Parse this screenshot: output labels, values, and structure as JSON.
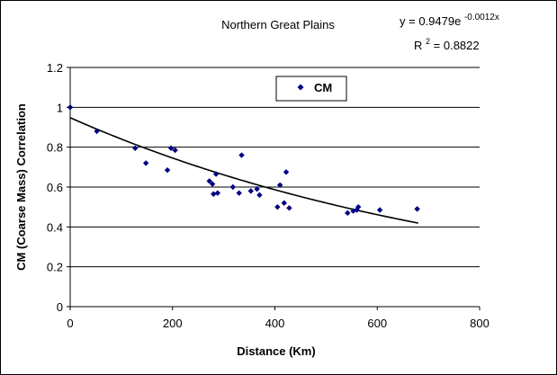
{
  "chart_data": {
    "type": "scatter",
    "title": "Northern Great Plains",
    "xlabel": "Distance (Km)",
    "ylabel": "CM (Coarse Mass) Correlation",
    "xlim": [
      0,
      800
    ],
    "ylim": [
      0,
      1.2
    ],
    "x_ticks": [
      "0",
      "200",
      "400",
      "600",
      "800"
    ],
    "y_ticks": [
      "0",
      "0.2",
      "0.4",
      "0.6",
      "0.8",
      "1",
      "1.2"
    ],
    "grid": "horizontal",
    "legend": {
      "placement": "top-center",
      "entries": [
        "CM"
      ]
    },
    "series": [
      {
        "name": "CM",
        "color": "#000080",
        "marker": "diamond",
        "points": [
          [
            0,
            1.0
          ],
          [
            52,
            0.88
          ],
          [
            127,
            0.795
          ],
          [
            148,
            0.72
          ],
          [
            190,
            0.685
          ],
          [
            197,
            0.795
          ],
          [
            205,
            0.785
          ],
          [
            272,
            0.63
          ],
          [
            278,
            0.615
          ],
          [
            280,
            0.565
          ],
          [
            285,
            0.665
          ],
          [
            288,
            0.57
          ],
          [
            318,
            0.6
          ],
          [
            330,
            0.57
          ],
          [
            335,
            0.76
          ],
          [
            353,
            0.58
          ],
          [
            365,
            0.59
          ],
          [
            370,
            0.56
          ],
          [
            405,
            0.5
          ],
          [
            410,
            0.61
          ],
          [
            418,
            0.52
          ],
          [
            422,
            0.675
          ],
          [
            428,
            0.495
          ],
          [
            542,
            0.47
          ],
          [
            553,
            0.48
          ],
          [
            560,
            0.485
          ],
          [
            563,
            0.5
          ],
          [
            605,
            0.485
          ],
          [
            678,
            0.49
          ]
        ]
      }
    ],
    "trendline": {
      "type": "exponential",
      "a": 0.9479,
      "b": -0.0012,
      "x_range": [
        0,
        680
      ],
      "color": "#000000",
      "equation_base": "y = 0.9479e",
      "equation_exponent": "-0.0012x",
      "r2_base": "R",
      "r2_sup": "2",
      "r2_value": " = 0.8822"
    }
  }
}
